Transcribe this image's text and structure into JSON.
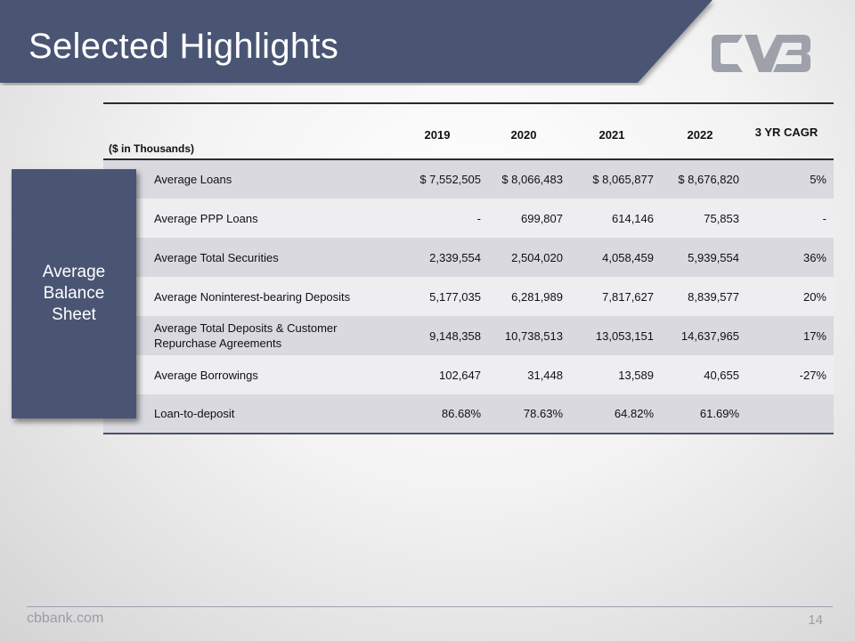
{
  "slide": {
    "title": "Selected Highlights",
    "side_label": "Average Balance Sheet",
    "footer_url": "cbbank.com",
    "page_number": "14",
    "colors": {
      "title_band": "#4a5573",
      "side_box": "#4a5573",
      "logo": "#9ea1aa"
    },
    "logo_icon": "cvb-logo"
  },
  "table": {
    "unit_label": "($ in Thousands)",
    "columns": [
      "2019",
      "2020",
      "2021",
      "2022",
      "3 YR CAGR"
    ],
    "rows": [
      {
        "label": "Average Loans",
        "values": [
          "$ 7,552,505",
          "$ 8,066,483",
          "$ 8,065,877",
          "$ 8,676,820",
          "5%"
        ]
      },
      {
        "label": "Average PPP Loans",
        "values": [
          "-",
          "699,807",
          "614,146",
          "75,853",
          "-"
        ]
      },
      {
        "label": "Average Total Securities",
        "values": [
          "2,339,554",
          "2,504,020",
          "4,058,459",
          "5,939,554",
          "36%"
        ]
      },
      {
        "label": "Average Noninterest-bearing Deposits",
        "values": [
          "5,177,035",
          "6,281,989",
          "7,817,627",
          "8,839,577",
          "20%"
        ]
      },
      {
        "label": "Average Total Deposits & Customer Repurchase Agreements",
        "values": [
          "9,148,358",
          "10,738,513",
          "13,053,151",
          "14,637,965",
          "17%"
        ]
      },
      {
        "label": "Average Borrowings",
        "values": [
          "102,647",
          "31,448",
          "13,589",
          "40,655",
          "-27%"
        ]
      },
      {
        "label": "Loan-to-deposit",
        "values": [
          "86.68%",
          "78.63%",
          "64.82%",
          "61.69%",
          ""
        ]
      }
    ]
  }
}
